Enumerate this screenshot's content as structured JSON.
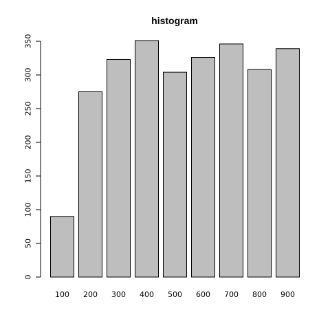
{
  "chart_data": {
    "type": "bar",
    "title": "histogram",
    "xlabel": "",
    "ylabel": "",
    "categories": [
      "100",
      "200",
      "300",
      "400",
      "500",
      "600",
      "700",
      "800",
      "900"
    ],
    "values": [
      90,
      275,
      323,
      351,
      304,
      326,
      346,
      308,
      339
    ],
    "ylim": [
      0,
      350
    ],
    "yticks": [
      0,
      50,
      100,
      150,
      200,
      250,
      300,
      350
    ],
    "grid": false,
    "legend": "none",
    "bar_color": "#bebebe",
    "border_color": "#000000"
  }
}
